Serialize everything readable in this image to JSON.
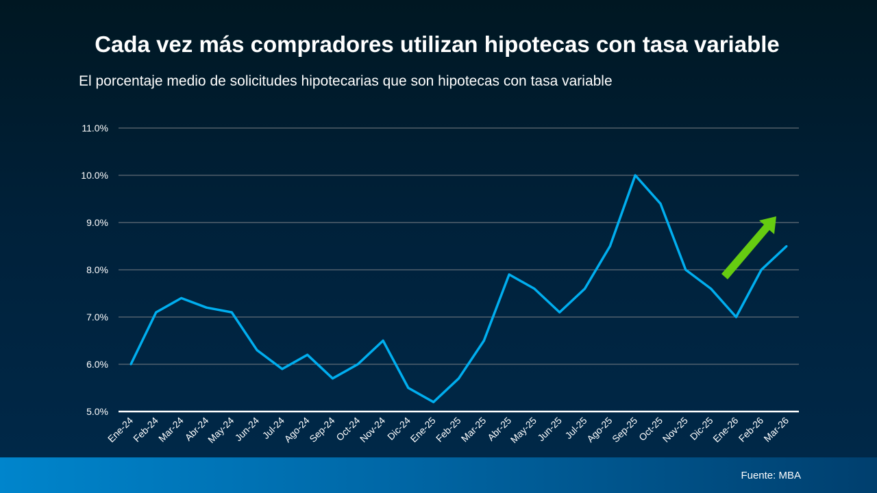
{
  "chart_data": {
    "type": "line",
    "title": "Cada vez más compradores utilizan hipotecas con tasa variable",
    "subtitle": "El porcentaje medio de solicitudes hipotecarias que son hipotecas con tasa variable",
    "categories": [
      "Ene-24",
      "Feb-24",
      "Mar-24",
      "Abr-24",
      "May-24",
      "Jun-24",
      "Jul-24",
      "Ago-24",
      "Sep-24",
      "Oct-24",
      "Nov-24",
      "Dic-24",
      "Ene-25",
      "Feb-25",
      "Mar-25",
      "Abr-25",
      "May-25",
      "Jun-25",
      "Jul-25",
      "Ago-25",
      "Sep-25",
      "Oct-25",
      "Nov-25",
      "Dic-25",
      "Ene-26",
      "Feb-26",
      "Mar-26"
    ],
    "values": [
      6.0,
      7.1,
      7.4,
      7.2,
      7.1,
      6.3,
      5.9,
      6.2,
      5.7,
      6.0,
      6.5,
      5.5,
      5.2,
      5.7,
      6.5,
      7.9,
      7.6,
      7.1,
      7.6,
      8.5,
      10.0,
      9.4,
      8.0,
      7.6,
      7.0,
      8.0,
      8.5
    ],
    "ylim": [
      5,
      11
    ],
    "yticks": [
      "5.0%",
      "6.0%",
      "7.0%",
      "8.0%",
      "9.0%",
      "10.0%",
      "11.0%"
    ],
    "grid": true,
    "line_color": "#00aeef",
    "annotation": "green upward arrow",
    "arrow_color": "#66cc11"
  },
  "footer": {
    "source": "Fuente: MBA"
  }
}
